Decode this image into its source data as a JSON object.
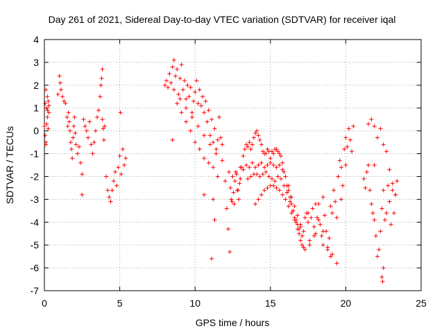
{
  "chart_data": {
    "type": "scatter",
    "title": "Day 261 of 2021, Sidereal Day-to-day VTEC variation (SDTVAR) for receiver iqal",
    "xlabel": "GPS time / hours",
    "ylabel": "SDTVAR / TECUs",
    "xlim": [
      0,
      25
    ],
    "ylim": [
      -7,
      4
    ],
    "xticks": [
      0,
      5,
      10,
      15,
      20,
      25
    ],
    "yticks": [
      -7,
      -6,
      -5,
      -4,
      -3,
      -2,
      -1,
      0,
      1,
      2,
      3,
      4
    ],
    "grid": true,
    "marker": "+",
    "color": "#ff0000",
    "series": [
      {
        "name": "SDTVAR",
        "x": [
          0.0,
          0.05,
          0.1,
          0.15,
          0.2,
          0.25,
          0.3,
          0.05,
          0.1,
          0.15,
          0.2,
          0.25,
          0.3,
          0.1,
          0.2,
          0.9,
          1.0,
          1.05,
          1.1,
          1.2,
          1.3,
          1.4,
          1.5,
          1.55,
          1.6,
          1.65,
          1.7,
          1.75,
          1.8,
          1.85,
          1.9,
          1.95,
          2.0,
          2.05,
          2.1,
          2.2,
          2.3,
          2.4,
          2.5,
          2.6,
          2.7,
          2.8,
          2.9,
          3.0,
          3.1,
          3.2,
          3.3,
          3.4,
          3.5,
          3.6,
          3.7,
          3.75,
          3.8,
          3.85,
          3.9,
          3.95,
          4.0,
          4.1,
          4.2,
          4.3,
          4.4,
          4.5,
          4.6,
          4.7,
          4.8,
          4.9,
          5.0,
          5.1,
          5.2,
          5.3,
          5.4,
          2.5,
          3.85,
          5.05,
          8.0,
          8.1,
          8.2,
          8.3,
          8.4,
          8.5,
          8.6,
          8.7,
          8.8,
          8.9,
          9.0,
          9.1,
          9.2,
          9.3,
          9.4,
          9.5,
          9.6,
          9.7,
          9.8,
          9.9,
          10.0,
          10.1,
          10.2,
          10.3,
          10.4,
          10.5,
          10.6,
          10.7,
          10.8,
          10.9,
          11.0,
          11.1,
          11.2,
          11.3,
          11.4,
          11.5,
          11.6,
          11.7,
          11.8,
          8.5,
          8.8,
          9.1,
          9.4,
          9.7,
          10.0,
          10.3,
          10.6,
          10.9,
          11.2,
          11.5,
          8.6,
          9.0,
          9.4,
          9.8,
          10.2,
          10.6,
          11.0,
          11.4,
          11.8,
          10.6,
          11.3,
          11.1,
          11.2,
          12.0,
          12.1,
          12.2,
          12.3,
          12.4,
          12.5,
          12.6,
          12.7,
          12.8,
          12.9,
          13.0,
          13.1,
          13.2,
          13.3,
          13.4,
          13.5,
          13.6,
          13.7,
          13.8,
          13.9,
          14.0,
          14.1,
          14.2,
          14.3,
          14.4,
          14.5,
          14.6,
          14.7,
          14.8,
          14.9,
          15.0,
          15.1,
          15.2,
          15.3,
          15.4,
          15.5,
          15.6,
          15.7,
          15.8,
          15.9,
          16.0,
          16.1,
          16.2,
          16.3,
          16.4,
          16.5,
          16.6,
          16.7,
          16.8,
          16.9,
          17.0,
          17.1,
          17.2,
          13.0,
          13.2,
          13.4,
          13.6,
          13.8,
          14.0,
          14.2,
          14.4,
          14.6,
          14.8,
          15.0,
          15.2,
          15.4,
          15.6,
          15.8,
          16.0,
          16.2,
          16.4,
          16.6,
          16.8,
          17.0,
          13.5,
          13.7,
          13.9,
          14.1,
          14.3,
          14.5,
          14.7,
          14.9,
          15.1,
          15.3,
          15.5,
          15.7,
          15.9,
          16.1,
          16.3,
          16.5,
          16.7,
          16.9,
          14.0,
          14.2,
          14.4,
          14.6,
          14.8,
          15.0,
          15.2,
          15.4,
          15.6,
          15.8,
          16.0,
          16.2,
          16.4,
          16.6,
          16.8,
          12.25,
          12.35,
          12.45,
          12.55,
          12.65,
          12.75,
          12.85,
          12.95,
          17.0,
          17.1,
          17.2,
          17.3,
          17.4,
          17.5,
          17.6,
          17.7,
          17.8,
          17.9,
          18.0,
          18.1,
          18.2,
          18.3,
          18.4,
          18.5,
          18.6,
          18.7,
          18.8,
          18.9,
          19.0,
          19.1,
          19.2,
          19.3,
          19.4,
          19.5,
          19.6,
          19.7,
          19.8,
          19.9,
          20.0,
          20.1,
          20.2,
          20.3,
          20.4,
          20.5,
          17.3,
          17.6,
          17.9,
          18.2,
          18.5,
          18.8,
          19.1,
          19.4,
          19.7,
          20.0,
          18.5,
          19.0,
          17.5,
          18.0,
          21.2,
          21.3,
          21.4,
          21.5,
          21.6,
          21.7,
          21.8,
          21.9,
          22.0,
          22.1,
          22.2,
          22.3,
          22.4,
          22.5,
          22.6,
          22.7,
          22.8,
          22.9,
          23.0,
          23.1,
          23.2,
          23.3,
          23.4,
          21.5,
          21.7,
          21.9,
          22.1,
          22.3,
          22.5,
          22.7,
          22.9,
          23.1,
          23.3,
          22.4,
          22.45,
          22.5,
          21.9
        ],
        "y": [
          0.2,
          1.2,
          1.8,
          1.0,
          0.6,
          1.3,
          0.8,
          -0.2,
          -0.5,
          0.3,
          1.5,
          0.1,
          1.1,
          -0.6,
          0.9,
          1.6,
          2.4,
          2.1,
          1.8,
          1.5,
          1.3,
          1.2,
          0.6,
          0.2,
          0.8,
          0.4,
          0.0,
          -0.5,
          -0.8,
          -1.2,
          -0.3,
          0.2,
          0.6,
          -0.1,
          -0.6,
          -1.0,
          -0.7,
          -1.4,
          -1.9,
          0.5,
          0.2,
          0.0,
          -0.3,
          0.4,
          -0.6,
          -1.0,
          -0.5,
          0.0,
          0.6,
          0.9,
          1.5,
          2.0,
          2.3,
          0.5,
          0.1,
          -0.4,
          0.2,
          -2.0,
          -2.6,
          -2.9,
          -3.1,
          -2.6,
          -2.2,
          -1.8,
          -2.4,
          -1.6,
          -1.1,
          -1.9,
          -0.8,
          -1.5,
          -1.2,
          -2.8,
          2.7,
          0.8,
          2.0,
          2.2,
          1.9,
          2.5,
          2.1,
          2.8,
          3.1,
          2.4,
          2.7,
          1.6,
          2.3,
          2.9,
          1.8,
          2.2,
          1.4,
          2.0,
          1.5,
          1.9,
          0.8,
          1.3,
          1.7,
          2.2,
          1.2,
          1.8,
          1.1,
          1.5,
          0.8,
          1.3,
          0.4,
          0.9,
          -0.2,
          0.5,
          -0.5,
          0.1,
          -0.8,
          -0.4,
          0.6,
          -0.3,
          -0.6,
          -0.4,
          1.2,
          0.8,
          0.4,
          0.0,
          -0.5,
          -0.8,
          -1.2,
          -1.4,
          -1.6,
          -2.0,
          1.8,
          1.4,
          1.0,
          0.6,
          0.2,
          -0.2,
          -0.6,
          -1.0,
          -1.3,
          -2.8,
          -3.9,
          -5.6,
          -3.0,
          -2.2,
          -3.4,
          -4.3,
          -5.3,
          -3.0,
          -2.0,
          -3.2,
          -1.8,
          -2.6,
          -3.0,
          -2.1,
          -1.6,
          -1.1,
          -0.8,
          -0.6,
          -0.7,
          -0.5,
          -0.8,
          -0.6,
          -0.3,
          -0.1,
          0.0,
          -0.2,
          -0.4,
          -0.6,
          -0.9,
          -1.0,
          -1.0,
          -0.8,
          -0.9,
          -1.2,
          -0.9,
          -1.0,
          -0.8,
          -0.8,
          -0.9,
          -1.0,
          -1.1,
          -1.4,
          -1.8,
          -2.0,
          -2.4,
          -2.6,
          -2.9,
          -3.2,
          -3.5,
          -3.8,
          -4.0,
          -4.3,
          -4.5,
          -4.8,
          -5.0,
          -5.1,
          -1.6,
          -1.7,
          -1.5,
          -1.6,
          -1.4,
          -1.6,
          -1.5,
          -1.4,
          -1.6,
          -1.5,
          -1.4,
          -1.5,
          -1.6,
          -1.5,
          -1.7,
          -2.0,
          -2.4,
          -2.9,
          -3.3,
          -3.7,
          -4.1,
          -2.1,
          -2.0,
          -1.9,
          -1.9,
          -2.0,
          -1.9,
          -1.8,
          -2.0,
          -2.1,
          -2.2,
          -2.0,
          -2.1,
          -2.4,
          -2.7,
          -3.1,
          -3.5,
          -3.9,
          -4.3,
          -3.2,
          -3.0,
          -2.8,
          -2.6,
          -2.5,
          -2.4,
          -2.4,
          -2.5,
          -2.6,
          -2.8,
          -3.0,
          -3.3,
          -3.6,
          -3.9,
          -4.1,
          -1.8,
          -2.5,
          -3.1,
          -2.7,
          -2.2,
          -1.9,
          -2.6,
          -2.3,
          -4.2,
          -4.6,
          -4.4,
          -3.8,
          -3.6,
          -4.0,
          -4.8,
          -3.8,
          -3.4,
          -4.2,
          -4.5,
          -3.8,
          -3.2,
          -4.1,
          -4.6,
          -5.0,
          -3.7,
          -4.4,
          -5.2,
          -4.7,
          -5.5,
          -3.6,
          -2.6,
          -3.1,
          -3.8,
          -2.0,
          -1.3,
          -1.6,
          -2.4,
          -0.8,
          -0.3,
          -0.7,
          0.1,
          -0.4,
          -0.9,
          0.2,
          -5.2,
          -5.0,
          -4.6,
          -3.9,
          -4.4,
          -5.1,
          -5.4,
          -5.8,
          -3.0,
          -1.5,
          -2.9,
          -3.3,
          -3.6,
          -3.2,
          -2.1,
          -2.5,
          -1.8,
          -1.5,
          -2.6,
          -3.2,
          -3.6,
          -3.9,
          -4.6,
          -5.5,
          -5.2,
          -4.4,
          -3.4,
          -2.6,
          -3.9,
          -3.6,
          -2.4,
          -3.1,
          -4.1,
          -2.6,
          -3.6,
          -2.8,
          -2.2,
          0.3,
          0.5,
          0.2,
          -0.3,
          0.1,
          -0.6,
          -0.9,
          -1.7,
          -2.3,
          -2.8,
          -6.4,
          -6.6,
          -6.0,
          -1.5
        ]
      }
    ]
  }
}
